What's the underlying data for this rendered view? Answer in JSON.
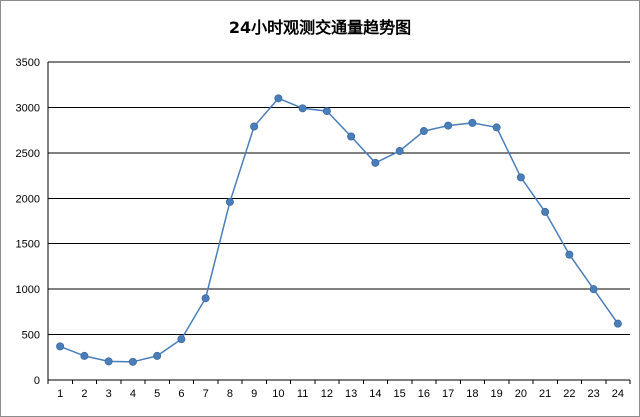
{
  "chart_data": {
    "type": "line",
    "title": "24小时观测交通量趋势图",
    "xlabel": "",
    "ylabel": "",
    "categories": [
      "1",
      "2",
      "3",
      "4",
      "5",
      "6",
      "7",
      "8",
      "9",
      "10",
      "11",
      "12",
      "13",
      "14",
      "15",
      "16",
      "17",
      "18",
      "19",
      "20",
      "21",
      "22",
      "23",
      "24"
    ],
    "series": [
      {
        "values": [
          370,
          265,
          205,
          200,
          265,
          450,
          900,
          1960,
          2790,
          3100,
          2990,
          2960,
          2680,
          2390,
          2520,
          2740,
          2800,
          2830,
          2780,
          2230,
          1850,
          1380,
          1000,
          620
        ]
      }
    ],
    "ylim": [
      0,
      3500
    ],
    "yticks": [
      0,
      500,
      1000,
      1500,
      2000,
      2500,
      3000,
      3500
    ],
    "grid": true,
    "line_color": "#4a7ebb",
    "legend": "none"
  }
}
